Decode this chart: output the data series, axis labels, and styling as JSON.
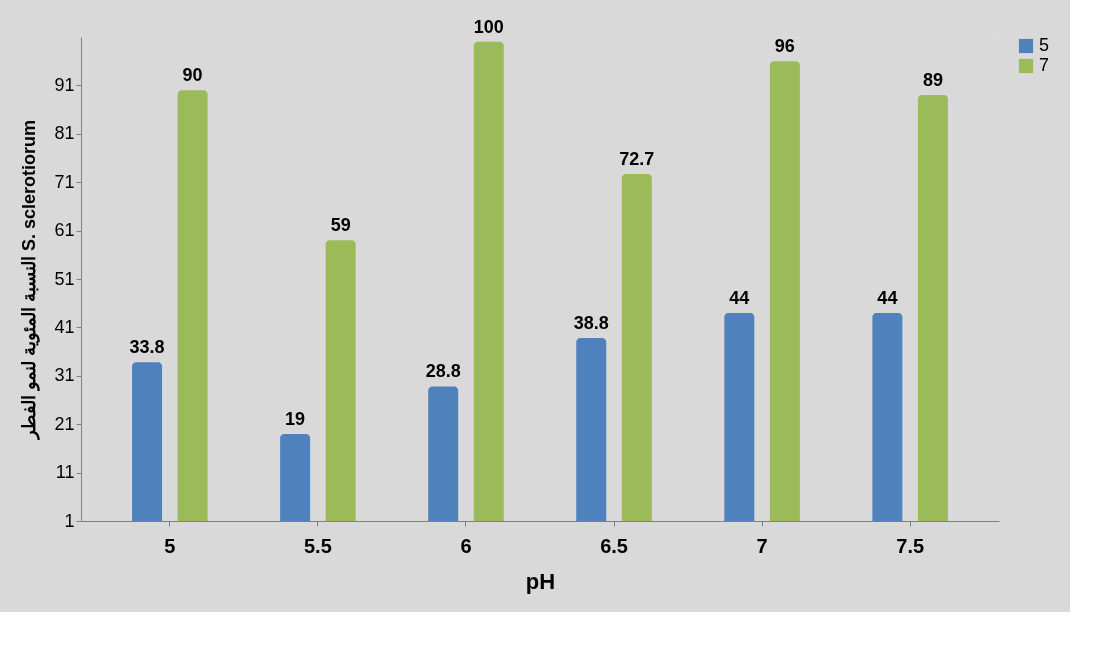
{
  "chart_data": {
    "type": "bar",
    "xlabel": "pH",
    "ylabel": "النسبة المئوية لنمو الفطر S. sclerotiorum",
    "categories": [
      "5",
      "5.5",
      "6",
      "6.5",
      "7",
      "7.5"
    ],
    "series": [
      {
        "name": "5",
        "color": "#4f81bd",
        "values": [
          33.8,
          19,
          28.8,
          38.8,
          44,
          44
        ]
      },
      {
        "name": "7",
        "color": "#9bbb59",
        "values": [
          90,
          59,
          100,
          72.7,
          96,
          89
        ]
      }
    ],
    "ylim": [
      1,
      101
    ],
    "yticks": [
      1,
      11,
      21,
      31,
      41,
      51,
      61,
      71,
      81,
      91
    ],
    "data_labels": true,
    "legend": "right"
  }
}
